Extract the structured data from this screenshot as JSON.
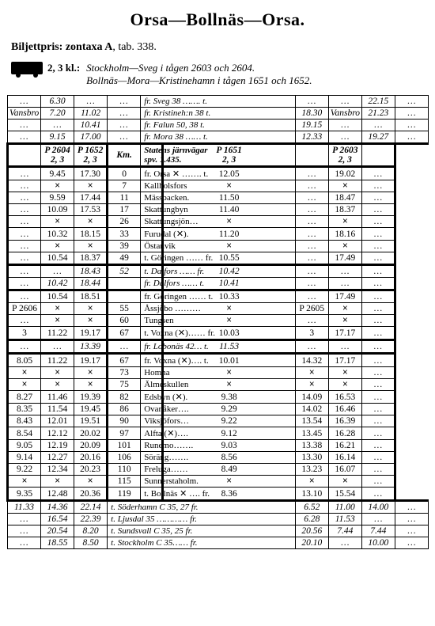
{
  "title": "Orsa—Bollnäs—Orsa.",
  "subtitle_bold": "Biljettpris: zontaxa A",
  "subtitle_rest": ", tab. 338.",
  "kl_label": "2, 3 kl.:",
  "kl_lines": [
    "Stockholm—Sveg i tågen 2603 och 2604.",
    "Bollnäs—Mora—Kristinehamn i tågen 1651 och 1652."
  ],
  "top_rows": [
    {
      "c1": "…",
      "c2": "6.30",
      "c3": "…",
      "c4": "…",
      "st": "fr. Sveg 38 ……. t.",
      "c5": "…",
      "c6": "…",
      "c7": "22.15",
      "c8": "…"
    },
    {
      "c1": "Vansbro",
      "c2": "7.20",
      "c3": "11.02",
      "c4": "…",
      "st": "fr. Kristineh:n 38 t.",
      "c5": "18.30",
      "c6": "Vansbro",
      "c7": "21.23",
      "c8": "…"
    },
    {
      "c1": "…",
      "c2": "…",
      "c3": "10.41",
      "c4": "…",
      "st": "fr. Falun 50, 38 t.",
      "c5": "19.15",
      "c6": "…",
      "c7": "…",
      "c8": "…"
    },
    {
      "c1": "…",
      "c2": "9.15",
      "c3": "17.00",
      "c4": "…",
      "st": "fr. Mora 38 …… t.",
      "c5": "12.33",
      "c6": "…",
      "c7": "19.27",
      "c8": "…"
    }
  ],
  "header": {
    "c1": "",
    "c2": "P 2604\n2, 3",
    "c3": "P 1652\n2, 3",
    "km": "Km.",
    "st": "Statens järnvägar\nspv. 1.435.",
    "c5": "P 1651\n2, 3",
    "c6": "",
    "c7": "P 2603\n2, 3",
    "c8": ""
  },
  "sec1": [
    {
      "c1": "…",
      "c2": "9.45",
      "c3": "17.30",
      "km": "0",
      "st": "fr. Orsa ✕ ……. t.",
      "c5": "12.05",
      "c6": "…",
      "c7": "19.02",
      "c8": "…"
    },
    {
      "c1": "…",
      "c2": "×",
      "c3": "×",
      "km": "7",
      "st": "   Kallholsfors",
      "c5": "×",
      "c6": "…",
      "c7": "×",
      "c8": "…"
    },
    {
      "c1": "…",
      "c2": "9.59",
      "c3": "17.44",
      "km": "11",
      "st": "   Mässbacken.",
      "c5": "11.50",
      "c6": "…",
      "c7": "18.47",
      "c8": "…"
    },
    {
      "c1": "…",
      "c2": "10.09",
      "c3": "17.53",
      "km": "17",
      "st": "   Skattungbyn",
      "c5": "11.40",
      "c6": "…",
      "c7": "18.37",
      "c8": "…"
    },
    {
      "c1": "…",
      "c2": "×",
      "c3": "×",
      "km": "26",
      "st": "   Skattungsjön…",
      "c5": "×",
      "c6": "…",
      "c7": "×",
      "c8": "…"
    },
    {
      "c1": "…",
      "c2": "10.32",
      "c3": "18.15",
      "km": "33",
      "st": "   Furudal (✕).",
      "c5": "11.20",
      "c6": "…",
      "c7": "18.16",
      "c8": "…"
    },
    {
      "c1": "…",
      "c2": "×",
      "c3": "×",
      "km": "39",
      "st": "   Östanvik",
      "c5": "×",
      "c6": "…",
      "c7": "×",
      "c8": "…"
    },
    {
      "c1": "…",
      "c2": "10.54",
      "c3": "18.37",
      "km": "49",
      "st": "t. Göringen …… fr.",
      "c5": "10.55",
      "c6": "…",
      "c7": "17.49",
      "c8": "…"
    }
  ],
  "dalfors": [
    {
      "c1": "…",
      "c2": "…",
      "c3": "18.43",
      "km": "52",
      "st": "t. Dalfors …… fr.",
      "c5": "10.42",
      "c6": "…",
      "c7": "…",
      "c8": "…"
    },
    {
      "c1": "…",
      "c2": "10.42",
      "c3": "18.44",
      "km": "",
      "st": "fr. Dalfors …… t.",
      "c5": "10.41",
      "c6": "…",
      "c7": "…",
      "c8": "…"
    }
  ],
  "sec2": [
    {
      "c1": "…",
      "c2": "10.54",
      "c3": "18.51",
      "km": "",
      "st": "fr. Göringen …… t.",
      "c5": "10.33",
      "c6": "…",
      "c7": "17.49",
      "c8": "…"
    },
    {
      "c1": "P 2606",
      "c2": "×",
      "c3": "×",
      "km": "55",
      "st": "   Åssjöbo ………",
      "c5": "×",
      "c6": "P 2605",
      "c7": "×",
      "c8": "…"
    },
    {
      "c1": "…",
      "c2": "×",
      "c3": "×",
      "km": "60",
      "st": "   Tungsen",
      "c5": "×",
      "c6": "…",
      "c7": "×",
      "c8": "…"
    },
    {
      "c1": "3",
      "c2": "11.22",
      "c3": "19.17",
      "km": "67",
      "st": "t. Voxna (✕)…… fr.",
      "c5": "10.03",
      "c6": "3",
      "c7": "17.17",
      "c8": "…"
    }
  ],
  "lobonas": {
    "c1": "…",
    "c2": "…",
    "c3": "13.39",
    "km": "…",
    "st": "fr. Lobonäs 42… t.",
    "c5": "11.53",
    "c6": "…",
    "c7": "…",
    "c8": "…"
  },
  "sec3": [
    {
      "c1": "8.05",
      "c2": "11.22",
      "c3": "19.17",
      "km": "67",
      "st": "fr. Voxna (✕)…. t.",
      "c5": "10.01",
      "c6": "14.32",
      "c7": "17.17",
      "c8": "…"
    },
    {
      "c1": "×",
      "c2": "×",
      "c3": "×",
      "km": "73",
      "st": "   Homna",
      "c5": "×",
      "c6": "×",
      "c7": "×",
      "c8": "…"
    },
    {
      "c1": "×",
      "c2": "×",
      "c3": "×",
      "km": "75",
      "st": "   Älmeskullen",
      "c5": "×",
      "c6": "×",
      "c7": "×",
      "c8": "…"
    },
    {
      "c1": "8.27",
      "c2": "11.46",
      "c3": "19.39",
      "km": "82",
      "st": "   Edsbyn (✕).",
      "c5": "9.38",
      "c6": "14.09",
      "c7": "16.53",
      "c8": "…"
    },
    {
      "c1": "8.35",
      "c2": "11.54",
      "c3": "19.45",
      "km": "86",
      "st": "   Ovanåker….",
      "c5": "9.29",
      "c6": "14.02",
      "c7": "16.46",
      "c8": "…"
    },
    {
      "c1": "8.43",
      "c2": "12.01",
      "c3": "19.51",
      "km": "90",
      "st": "   Viksjöfors…",
      "c5": "9.22",
      "c6": "13.54",
      "c7": "16.39",
      "c8": "…"
    },
    {
      "c1": "8.54",
      "c2": "12.12",
      "c3": "20.02",
      "km": "97",
      "st": "   Alfta (✕)….",
      "c5": "9.12",
      "c6": "13.45",
      "c7": "16.28",
      "c8": "…"
    },
    {
      "c1": "9.05",
      "c2": "12.19",
      "c3": "20.09",
      "km": "101",
      "st": "   Runemo…….",
      "c5": "9.03",
      "c6": "13.38",
      "c7": "16.21",
      "c8": "…"
    },
    {
      "c1": "9.14",
      "c2": "12.27",
      "c3": "20.16",
      "km": "106",
      "st": "   Söräng…….",
      "c5": "8.56",
      "c6": "13.30",
      "c7": "16.14",
      "c8": "…"
    },
    {
      "c1": "9.22",
      "c2": "12.34",
      "c3": "20.23",
      "km": "110",
      "st": "   Freluga……",
      "c5": "8.49",
      "c6": "13.23",
      "c7": "16.07",
      "c8": "…"
    },
    {
      "c1": "×",
      "c2": "×",
      "c3": "×",
      "km": "115",
      "st": "   Sunnerstaholm.",
      "c5": "×",
      "c6": "×",
      "c7": "×",
      "c8": "…"
    },
    {
      "c1": "9.35",
      "c2": "12.48",
      "c3": "20.36",
      "km": "119",
      "st": "t. Bollnäs ✕ …. fr.",
      "c5": "8.36",
      "c6": "13.10",
      "c7": "15.54",
      "c8": "…"
    }
  ],
  "bottom": [
    {
      "c1": "11.33",
      "c2": "14.36",
      "c3": "22.14",
      "st": "t. Söderhamn C 35, 27 fr.",
      "c5": "6.52",
      "c6": "11.00",
      "c7": "14.00",
      "c8": "…"
    },
    {
      "c1": "…",
      "c2": "16.54",
      "c3": "22.39",
      "st": "t. Ljusdal 35 ………… fr.",
      "c5": "6.28",
      "c6": "11.53",
      "c7": "…",
      "c8": "…"
    },
    {
      "c1": "…",
      "c2": "20.54",
      "c3": "8.20",
      "st": "t. Sundsvall C 35, 25 fr.",
      "c5": "20.56",
      "c6": "7.44",
      "c7": "7.44",
      "c8": "…"
    },
    {
      "c1": "…",
      "c2": "18.55",
      "c3": "8.50",
      "st": "t. Stockholm C 35…… fr.",
      "c5": "20.10",
      "c6": "…",
      "c7": "10.00",
      "c8": "…"
    }
  ]
}
